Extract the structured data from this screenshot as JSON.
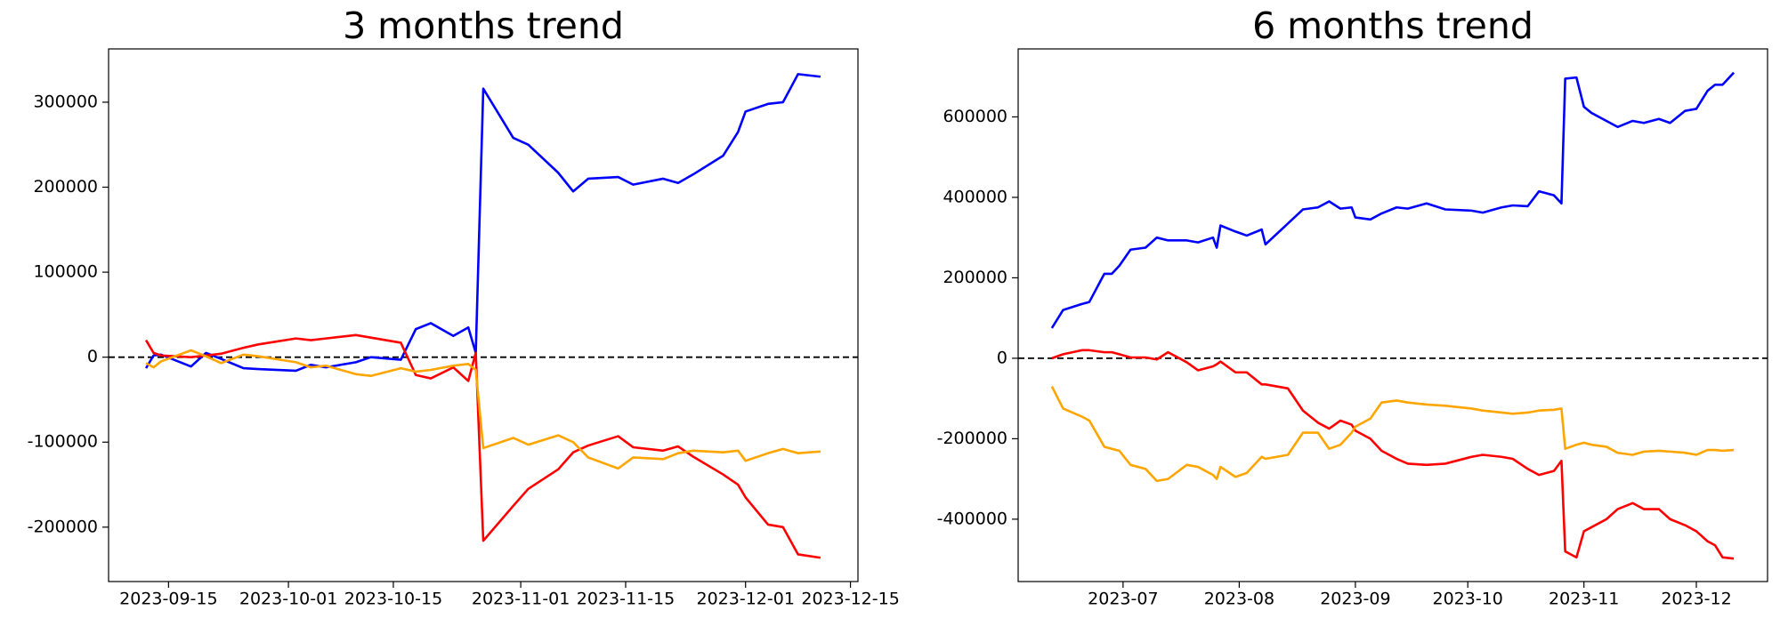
{
  "chart_data": [
    {
      "type": "line",
      "title": "3 months trend",
      "x": [
        "2023-09-12",
        "2023-09-13",
        "2023-09-14",
        "2023-09-18",
        "2023-09-20",
        "2023-09-22",
        "2023-09-25",
        "2023-09-27",
        "2023-10-02",
        "2023-10-04",
        "2023-10-06",
        "2023-10-10",
        "2023-10-12",
        "2023-10-16",
        "2023-10-18",
        "2023-10-20",
        "2023-10-23",
        "2023-10-25",
        "2023-10-26",
        "2023-10-27",
        "2023-10-31",
        "2023-11-02",
        "2023-11-06",
        "2023-11-08",
        "2023-11-10",
        "2023-11-14",
        "2023-11-16",
        "2023-11-20",
        "2023-11-22",
        "2023-11-24",
        "2023-11-28",
        "2023-11-30",
        "2023-12-01",
        "2023-12-04",
        "2023-12-06",
        "2023-12-08",
        "2023-12-11"
      ],
      "series": [
        {
          "color": "blue",
          "values": [
            -13000,
            2000,
            3000,
            -11000,
            5000,
            -2000,
            -13000,
            -14000,
            -16000,
            -9000,
            -12000,
            -6000,
            0,
            -3000,
            33000,
            40000,
            25000,
            35000,
            5000,
            316000,
            258000,
            250000,
            217000,
            195000,
            210000,
            212000,
            203000,
            210000,
            205000,
            215000,
            237000,
            265000,
            289000,
            298000,
            300000,
            333000,
            330000
          ]
        },
        {
          "color": "red",
          "values": [
            20000,
            5000,
            2000,
            0,
            2000,
            4000,
            11000,
            15000,
            22000,
            20000,
            22000,
            26000,
            23000,
            17000,
            -21000,
            -25000,
            -12000,
            -28000,
            5000,
            -216000,
            -175000,
            -155000,
            -132000,
            -112000,
            -104000,
            -93000,
            -106000,
            -110000,
            -105000,
            -117000,
            -138000,
            -150000,
            -165000,
            -197000,
            -200000,
            -232000,
            -236000
          ]
        },
        {
          "color": "orange",
          "values": [
            -7000,
            -12000,
            -5000,
            8000,
            1000,
            -7000,
            3000,
            1000,
            -6000,
            -12000,
            -10000,
            -20000,
            -22000,
            -13000,
            -17000,
            -15000,
            -10000,
            -8000,
            -15000,
            -107000,
            -95000,
            -103000,
            -92000,
            -100000,
            -118000,
            -131000,
            -118000,
            -120000,
            -113000,
            -110000,
            -112000,
            -110000,
            -122000,
            -113000,
            -108000,
            -113000,
            -111000
          ]
        }
      ],
      "xlim": [
        "2023-09-07",
        "2023-12-16"
      ],
      "xticks": [
        "2023-09-15",
        "2023-10-01",
        "2023-10-15",
        "2023-11-01",
        "2023-11-15",
        "2023-12-01",
        "2023-12-15"
      ],
      "ylim": [
        -264000,
        362700
      ],
      "yticks": [
        -200000,
        -100000,
        0,
        100000,
        200000,
        300000
      ],
      "hline": 0
    },
    {
      "type": "line",
      "title": "6 months trend",
      "x": [
        "2023-06-12",
        "2023-06-15",
        "2023-06-20",
        "2023-06-22",
        "2023-06-26",
        "2023-06-28",
        "2023-06-30",
        "2023-07-03",
        "2023-07-07",
        "2023-07-10",
        "2023-07-13",
        "2023-07-18",
        "2023-07-21",
        "2023-07-25",
        "2023-07-26",
        "2023-07-27",
        "2023-07-31",
        "2023-08-03",
        "2023-08-07",
        "2023-08-08",
        "2023-08-14",
        "2023-08-18",
        "2023-08-22",
        "2023-08-25",
        "2023-08-28",
        "2023-08-31",
        "2023-09-01",
        "2023-09-05",
        "2023-09-08",
        "2023-09-12",
        "2023-09-15",
        "2023-09-20",
        "2023-09-25",
        "2023-10-02",
        "2023-10-05",
        "2023-10-10",
        "2023-10-13",
        "2023-10-17",
        "2023-10-20",
        "2023-10-24",
        "2023-10-26",
        "2023-10-27",
        "2023-10-30",
        "2023-11-01",
        "2023-11-03",
        "2023-11-07",
        "2023-11-10",
        "2023-11-14",
        "2023-11-17",
        "2023-11-21",
        "2023-11-24",
        "2023-11-28",
        "2023-12-01",
        "2023-12-04",
        "2023-12-06",
        "2023-12-08",
        "2023-12-11"
      ],
      "series": [
        {
          "color": "blue",
          "values": [
            75000,
            120000,
            135000,
            140000,
            210000,
            210000,
            230000,
            270000,
            275000,
            300000,
            293000,
            293000,
            288000,
            300000,
            275000,
            330000,
            315000,
            305000,
            320000,
            283000,
            335000,
            370000,
            375000,
            390000,
            372000,
            375000,
            350000,
            345000,
            360000,
            375000,
            372000,
            385000,
            370000,
            367000,
            362000,
            375000,
            380000,
            378000,
            415000,
            405000,
            385000,
            695000,
            698000,
            625000,
            610000,
            590000,
            575000,
            590000,
            585000,
            595000,
            585000,
            615000,
            620000,
            665000,
            680000,
            680000,
            710000
          ]
        },
        {
          "color": "red",
          "values": [
            0,
            10000,
            20000,
            20000,
            15000,
            15000,
            10000,
            2000,
            2000,
            -3000,
            15000,
            -10000,
            -30000,
            -20000,
            -15000,
            -8000,
            -35000,
            -35000,
            -65000,
            -65000,
            -75000,
            -130000,
            -160000,
            -175000,
            -155000,
            -165000,
            -180000,
            -200000,
            -230000,
            -250000,
            -262000,
            -265000,
            -262000,
            -245000,
            -240000,
            -245000,
            -250000,
            -275000,
            -290000,
            -280000,
            -255000,
            -480000,
            -495000,
            -430000,
            -420000,
            -400000,
            -375000,
            -360000,
            -375000,
            -375000,
            -400000,
            -415000,
            -430000,
            -455000,
            -465000,
            -495000,
            -498000
          ]
        },
        {
          "color": "orange",
          "values": [
            -70000,
            -125000,
            -145000,
            -155000,
            -220000,
            -225000,
            -230000,
            -265000,
            -275000,
            -305000,
            -300000,
            -265000,
            -270000,
            -290000,
            -300000,
            -270000,
            -295000,
            -285000,
            -245000,
            -250000,
            -240000,
            -185000,
            -185000,
            -225000,
            -215000,
            -185000,
            -170000,
            -150000,
            -110000,
            -105000,
            -110000,
            -115000,
            -118000,
            -125000,
            -130000,
            -135000,
            -138000,
            -135000,
            -130000,
            -128000,
            -125000,
            -225000,
            -215000,
            -210000,
            -215000,
            -220000,
            -235000,
            -240000,
            -232000,
            -230000,
            -232000,
            -235000,
            -240000,
            -228000,
            -228000,
            -230000,
            -228000
          ]
        }
      ],
      "xlim": [
        "2023-06-03",
        "2023-12-20"
      ],
      "xticks": [
        "2023-07",
        "2023-08",
        "2023-09",
        "2023-10",
        "2023-11",
        "2023-12"
      ],
      "ylim": [
        -555000,
        769000
      ],
      "yticks": [
        -400000,
        -200000,
        0,
        200000,
        400000,
        600000
      ],
      "hline": 0
    }
  ]
}
